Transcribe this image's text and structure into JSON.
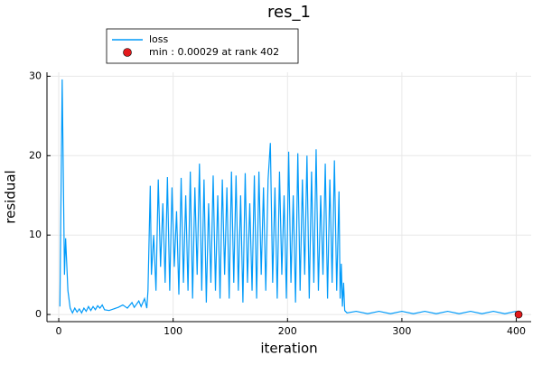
{
  "chart_data": {
    "type": "line",
    "title": "res_1",
    "x_label": "iteration",
    "y_label": "residual",
    "xlim": [
      -10.3,
      413
    ],
    "ylim": [
      -0.9,
      30.5
    ],
    "xticks": [
      0,
      100,
      200,
      300,
      400
    ],
    "yticks": [
      0,
      10,
      20,
      30
    ],
    "grid": true,
    "legend": "top-left",
    "series": [
      {
        "name": "loss",
        "color": "#009af9",
        "kind": "line",
        "x": [
          1,
          3,
          5,
          6,
          8,
          10,
          12,
          14,
          16,
          18,
          20,
          22,
          24,
          26,
          28,
          30,
          32,
          34,
          36,
          38,
          40,
          44,
          48,
          52,
          56,
          60,
          64,
          66,
          70,
          72,
          75,
          77,
          78,
          80,
          81,
          83,
          85,
          87,
          89,
          91,
          93,
          95,
          97,
          99,
          101,
          103,
          105,
          107,
          109,
          111,
          113,
          115,
          117,
          119,
          121,
          123,
          125,
          127,
          129,
          131,
          133,
          135,
          137,
          139,
          141,
          143,
          145,
          147,
          149,
          151,
          153,
          155,
          157,
          159,
          161,
          163,
          165,
          167,
          169,
          171,
          173,
          175,
          177,
          179,
          181,
          183,
          185,
          187,
          189,
          191,
          193,
          195,
          197,
          199,
          201,
          203,
          205,
          207,
          209,
          211,
          213,
          215,
          217,
          219,
          221,
          223,
          225,
          227,
          229,
          231,
          233,
          235,
          237,
          239,
          241,
          243,
          245,
          246,
          247,
          248,
          249,
          250,
          252,
          260,
          270,
          280,
          290,
          300,
          310,
          320,
          330,
          340,
          350,
          360,
          370,
          380,
          390,
          400
        ],
        "values": [
          1,
          29.6,
          5,
          9.6,
          3,
          0.8,
          0.2,
          0.8,
          0.3,
          0.7,
          0.2,
          0.8,
          0.4,
          1,
          0.5,
          1,
          0.6,
          1.1,
          0.8,
          1.2,
          0.6,
          0.5,
          0.7,
          0.9,
          1.2,
          0.8,
          1.5,
          0.9,
          1.7,
          1,
          2,
          0.8,
          3,
          16.2,
          5,
          10,
          3,
          17,
          6,
          14,
          4,
          17.3,
          3,
          16,
          6,
          13,
          2.5,
          17.2,
          4,
          15,
          3,
          18,
          2,
          16,
          5,
          19,
          3,
          17,
          1.5,
          14,
          4,
          17.5,
          3,
          15,
          2,
          17,
          5,
          16,
          2,
          18,
          4,
          17.5,
          3,
          15,
          1.5,
          17.8,
          4,
          14,
          3,
          17.5,
          2,
          18,
          5,
          16,
          3,
          17,
          21.6,
          4,
          16,
          2,
          18,
          5,
          15,
          2,
          20.5,
          4,
          15,
          1.5,
          20.3,
          3,
          17,
          5,
          20,
          2,
          18,
          4,
          20.8,
          3,
          15,
          5,
          19,
          2,
          17,
          4,
          19.4,
          3,
          15.5,
          2,
          6.4,
          1,
          4,
          0.5,
          0.2,
          0.4,
          0.1,
          0.4,
          0.1,
          0.4,
          0.1,
          0.4,
          0.1,
          0.4,
          0.1,
          0.4,
          0.1,
          0.4,
          0.1,
          0.4
        ]
      },
      {
        "name": "min : 0.00029 at rank 402",
        "color": "#e31a1c",
        "kind": "scatter",
        "x": [
          402
        ],
        "values": [
          0.00029
        ]
      }
    ]
  }
}
